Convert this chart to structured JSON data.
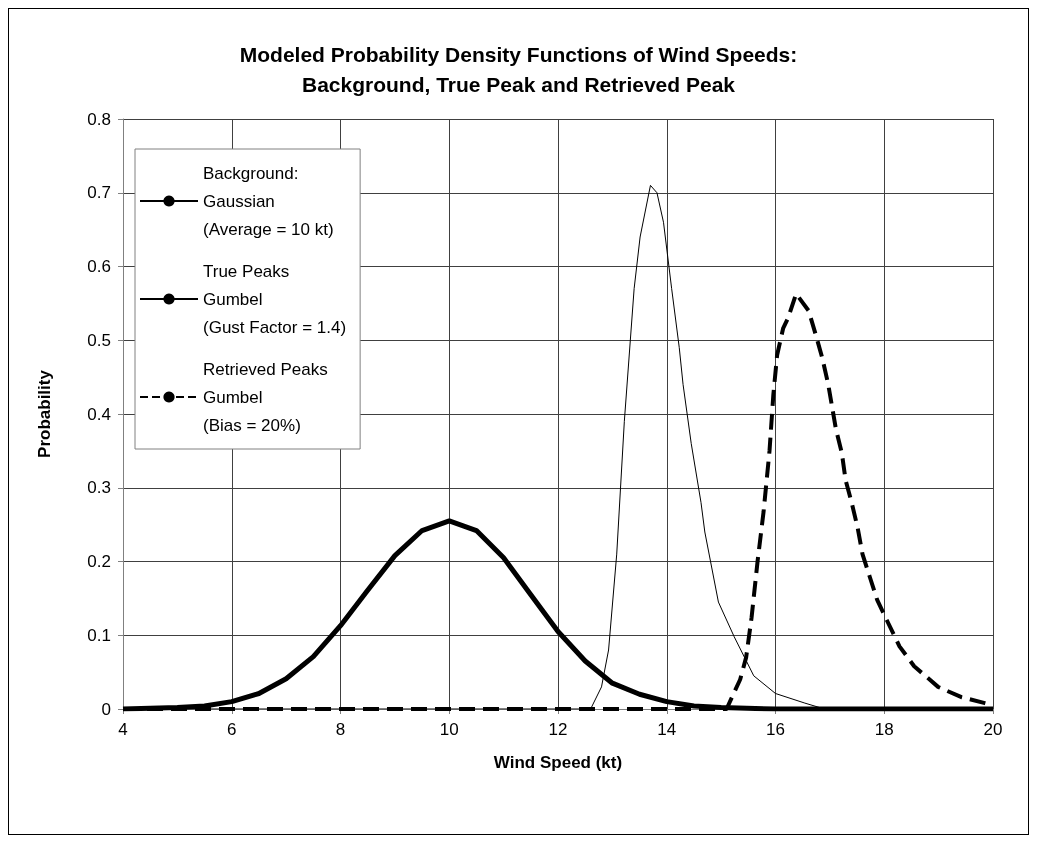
{
  "chart_data": {
    "type": "line",
    "title": "Modeled Probability Density Functions of Wind Speeds:\nBackground, True Peak and Retrieved Peak",
    "xlabel": "Wind Speed (kt)",
    "ylabel": "Probability",
    "xlim": [
      4,
      20
    ],
    "xticks": [
      4,
      6,
      8,
      10,
      12,
      14,
      16,
      18,
      20
    ],
    "ylim": [
      0,
      0.8
    ],
    "yticks": [
      0,
      0.1,
      0.2,
      0.3,
      0.4,
      0.5,
      0.6,
      0.7,
      0.8
    ],
    "grid": true,
    "legend": "top left",
    "marker": "none",
    "series": [
      {
        "name": "Background:\nGaussian\n(Average = 10 kt)",
        "color": "#000000",
        "line_style": "solid",
        "x": [
          4,
          5,
          5.5,
          6,
          6.5,
          7,
          7.5,
          8,
          8.5,
          9,
          9.5,
          10,
          10.5,
          11,
          11.5,
          12,
          12.5,
          13,
          13.5,
          14,
          14.5,
          15,
          16,
          17,
          18,
          19,
          20
        ],
        "values": [
          0,
          0.002,
          0.004,
          0.01,
          0.021,
          0.041,
          0.071,
          0.113,
          0.161,
          0.208,
          0.242,
          0.255,
          0.242,
          0.205,
          0.155,
          0.105,
          0.065,
          0.035,
          0.02,
          0.01,
          0.004,
          0.002,
          0,
          0,
          0,
          0,
          0
        ]
      },
      {
        "name": "True Peaks\nGumbel\n(Gust Factor = 1.4)",
        "color": "#000000",
        "line_style": "solid",
        "x": [
          4,
          12.6,
          12.8,
          12.93,
          13.08,
          13.22,
          13.4,
          13.51,
          13.7,
          13.82,
          13.94,
          14.09,
          14.23,
          14.3,
          14.45,
          14.63,
          14.7,
          14.95,
          15.24,
          15.6,
          16,
          16.54,
          16.9,
          20
        ],
        "values": [
          0,
          0,
          0.03,
          0.08,
          0.21,
          0.39,
          0.57,
          0.64,
          0.71,
          0.7,
          0.66,
          0.57,
          0.49,
          0.44,
          0.36,
          0.28,
          0.24,
          0.145,
          0.098,
          0.045,
          0.021,
          0.008,
          0,
          0
        ]
      },
      {
        "name": "Retrieved Peaks\nGumbel\n(Bias = 20%)",
        "color": "#000000",
        "line_style": "dashed",
        "x": [
          4,
          15.1,
          15.35,
          15.46,
          15.56,
          15.67,
          15.78,
          15.89,
          15.96,
          16.03,
          16.14,
          16.23,
          16.38,
          16.61,
          16.75,
          16.86,
          16.97,
          17.11,
          17.22,
          17.29,
          17.4,
          17.51,
          17.6,
          17.73,
          17.87,
          18.05,
          18.28,
          18.55,
          18.99,
          19.42,
          19.85,
          20
        ],
        "values": [
          0,
          0,
          0.04,
          0.07,
          0.124,
          0.2,
          0.267,
          0.35,
          0.426,
          0.48,
          0.516,
          0.53,
          0.563,
          0.54,
          0.505,
          0.476,
          0.44,
          0.38,
          0.347,
          0.31,
          0.28,
          0.246,
          0.21,
          0.18,
          0.148,
          0.12,
          0.085,
          0.058,
          0.03,
          0.016,
          0.008,
          0.005
        ]
      }
    ]
  }
}
